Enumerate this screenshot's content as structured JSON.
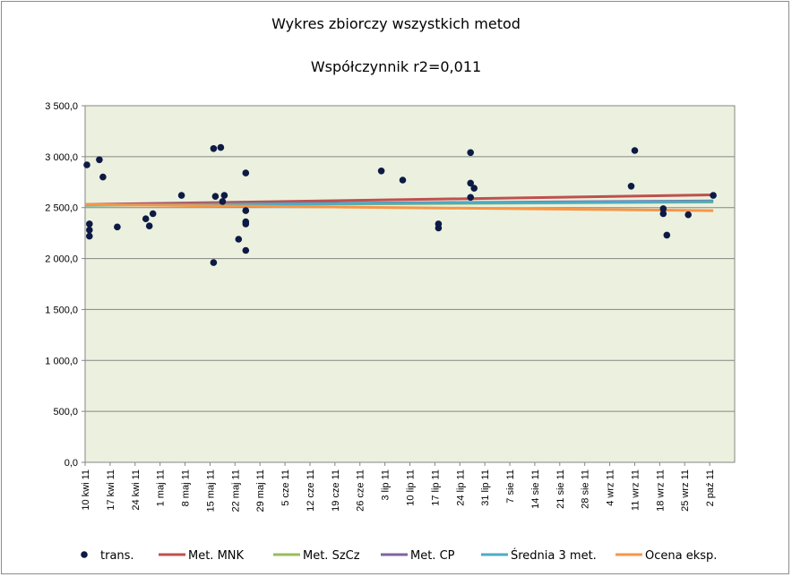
{
  "chart_data": {
    "type": "line",
    "title": "Wykres zbiorczy wszystkich metod",
    "subtitle": "Współczynnik  r2=0,011",
    "xlabel": "",
    "ylabel": "",
    "ylim": [
      0,
      3500
    ],
    "yticks": [
      "0,0",
      "500,0",
      "1 000,0",
      "1 500,0",
      "2 000,0",
      "2 500,0",
      "3 000,0",
      "3 500,0"
    ],
    "ytick_values": [
      0,
      500,
      1000,
      1500,
      2000,
      2500,
      3000,
      3500
    ],
    "xlim": [
      0,
      182
    ],
    "xticks": [
      "10 kwi 11",
      "17 kwi 11",
      "24 kwi 11",
      "1 maj 11",
      "8 maj 11",
      "15 maj 11",
      "22 maj 11",
      "29 maj 11",
      "5 cze 11",
      "12 cze 11",
      "19 cze 11",
      "26 cze 11",
      "3 lip 11",
      "10 lip 11",
      "17 lip 11",
      "24 lip 11",
      "31 lip 11",
      "7 sie 11",
      "14 sie 11",
      "21 sie 11",
      "28 sie 11",
      "4 wrz 11",
      "11 wrz 11",
      "18 wrz 11",
      "25 wrz 11",
      "2 paź 11"
    ],
    "xtick_step_days": 7,
    "grid": "horizontal",
    "legend_position": "bottom",
    "plot_background": "#ebf1de",
    "series": [
      {
        "name": "trans.",
        "kind": "scatter",
        "color": "#0d1a45",
        "x": [
          0.5,
          1.2,
          1.2,
          1.2,
          4,
          5,
          9,
          17,
          18,
          19,
          27,
          36,
          36,
          36.5,
          38,
          38.5,
          39,
          43,
          45,
          45,
          45,
          45,
          45,
          83,
          89,
          99,
          99,
          108,
          108,
          108,
          109,
          153,
          154,
          162,
          162,
          163,
          169,
          176
        ],
        "y": [
          2920,
          2340,
          2280,
          2220,
          2970,
          2800,
          2310,
          2390,
          2320,
          2440,
          2620,
          3080,
          1960,
          2610,
          3090,
          2560,
          2620,
          2190,
          2470,
          2840,
          2360,
          2340,
          2080,
          2860,
          2770,
          2340,
          2300,
          3040,
          2740,
          2600,
          2690,
          2710,
          3060,
          2490,
          2440,
          2230,
          2430,
          2620
        ]
      },
      {
        "name": "Met. MNK",
        "kind": "line",
        "color": "#c0504d",
        "x": [
          0,
          176
        ],
        "y": [
          2530,
          2625
        ]
      },
      {
        "name": "Met. SzCz",
        "kind": "line",
        "color": "#9bbb59",
        "x": [
          0,
          176
        ],
        "y": [
          2522,
          2555
        ]
      },
      {
        "name": "Met. CP",
        "kind": "line",
        "color": "#8064a2",
        "x": [
          0,
          176
        ],
        "y": [
          2527,
          2565
        ]
      },
      {
        "name": "Średnia 3 met.",
        "kind": "line",
        "color": "#4bacc6",
        "x": [
          0,
          176
        ],
        "y": [
          2525,
          2560
        ]
      },
      {
        "name": "Ocena eksp.",
        "kind": "line",
        "color": "#f79646",
        "x": [
          0,
          176
        ],
        "y": [
          2530,
          2470
        ]
      }
    ]
  }
}
